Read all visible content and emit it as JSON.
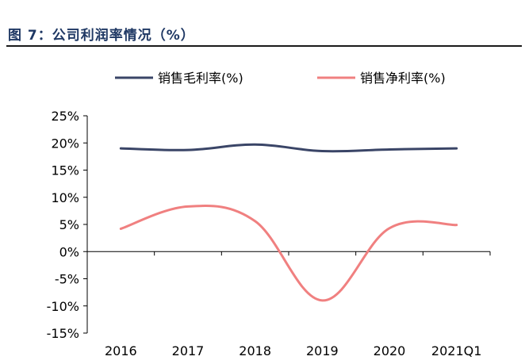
{
  "figure_title": "图 7：公司利润率情况（%）",
  "colors": {
    "title": "#1f3864",
    "gross_margin": "#3a4567",
    "net_margin": "#f08080",
    "axis": "#000000"
  },
  "chart_data": {
    "type": "line",
    "categories": [
      "2016",
      "2017",
      "2018",
      "2019",
      "2020",
      "2021Q1"
    ],
    "series": [
      {
        "name": "销售毛利率(%)",
        "values": [
          19.0,
          18.7,
          19.7,
          18.5,
          18.8,
          19.0
        ]
      },
      {
        "name": "销售净利率(%)",
        "values": [
          4.2,
          8.3,
          5.6,
          -9.0,
          4.3,
          4.9
        ]
      }
    ],
    "ylim": [
      -15,
      25
    ],
    "yticks": [
      25,
      20,
      15,
      10,
      5,
      0,
      -5,
      -10,
      -15
    ],
    "ytick_labels": [
      "25%",
      "20%",
      "15%",
      "10%",
      "5%",
      "0%",
      "-5%",
      "-10%",
      "-15%"
    ],
    "legend_position": "top-center",
    "grid": false,
    "smooth": true
  }
}
